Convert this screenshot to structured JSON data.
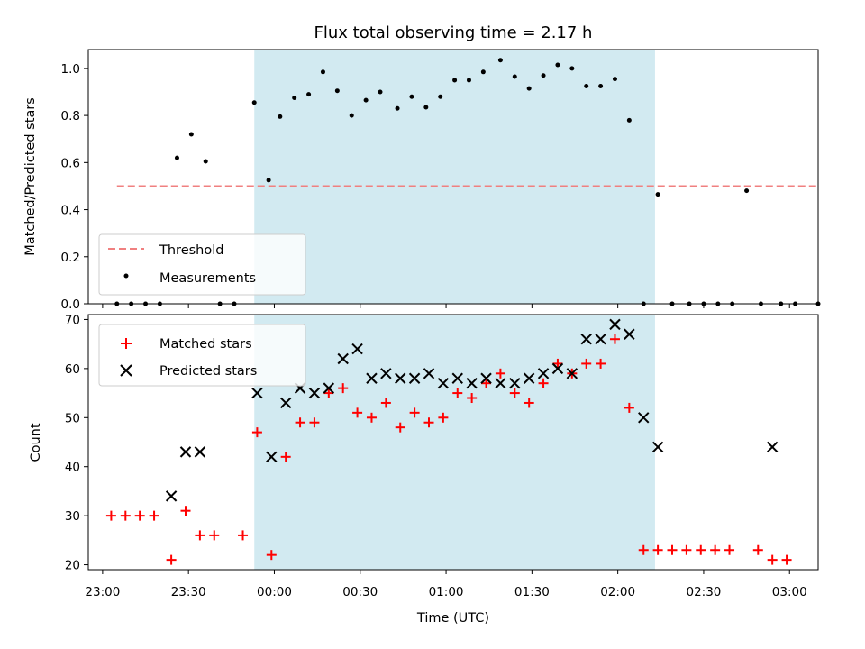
{
  "chart_data": [
    {
      "type": "scatter",
      "title": "Flux total observing time = 2.17 h",
      "ylabel": "Matched/Predicted stars",
      "xlim": [
        -5,
        240
      ],
      "ylim": [
        0,
        1.08
      ],
      "yticks": [
        0.0,
        0.2,
        0.4,
        0.6,
        0.8,
        1.0
      ],
      "ytick_labels": [
        "0.0",
        "0.2",
        "0.4",
        "0.6",
        "0.8",
        "1.0"
      ],
      "grid": false,
      "legend_position": "lower-left",
      "shaded_span_minutes": [
        53,
        193
      ],
      "threshold": {
        "name": "Threshold",
        "y": 0.5,
        "x_range": [
          5,
          250
        ],
        "color": "#f08080",
        "style": "dashed"
      },
      "series": [
        {
          "name": "Measurements",
          "marker": "dot",
          "color": "#000000",
          "x_minutes": [
            5,
            10,
            15,
            20,
            26,
            31,
            36,
            41,
            46,
            53,
            58,
            62,
            67,
            72,
            77,
            82,
            87,
            92,
            97,
            103,
            108,
            113,
            118,
            123,
            128,
            133,
            139,
            144,
            149,
            154,
            159,
            164,
            169,
            174,
            179,
            184,
            189,
            194,
            199,
            205,
            210,
            215,
            220,
            225,
            230,
            237,
            242,
            250
          ],
          "y": [
            0,
            0,
            0,
            0,
            0.62,
            0.72,
            0.605,
            0,
            0,
            0.855,
            0.525,
            0.795,
            0.875,
            0.89,
            0.985,
            0.905,
            0.8,
            0.865,
            0.9,
            0.83,
            0.88,
            0.835,
            0.88,
            0.95,
            0.95,
            0.985,
            1.035,
            0.965,
            0.915,
            0.97,
            1.015,
            1.0,
            0.925,
            0.925,
            0.955,
            0.78,
            0,
            0.465,
            0,
            0,
            0,
            0,
            0,
            0.48,
            0,
            0,
            0,
            0
          ]
        }
      ]
    },
    {
      "type": "scatter",
      "xlabel": "Time (UTC)",
      "ylabel": "Count",
      "xlim": [
        -5,
        250
      ],
      "ylim": [
        19,
        71
      ],
      "xticks_minutes": [
        0,
        30,
        60,
        90,
        120,
        150,
        180,
        210,
        240
      ],
      "xtick_labels": [
        "23:00",
        "23:30",
        "00:00",
        "00:30",
        "01:00",
        "01:30",
        "02:00",
        "02:30",
        "03:00"
      ],
      "yticks": [
        20,
        30,
        40,
        50,
        60,
        70
      ],
      "ytick_labels": [
        "20",
        "30",
        "40",
        "50",
        "60",
        "70"
      ],
      "grid": false,
      "legend_position": "upper-left",
      "shaded_span_minutes": [
        53,
        193
      ],
      "series": [
        {
          "name": "Matched stars",
          "marker": "plus",
          "color": "#ff0000",
          "x_minutes": [
            3,
            8,
            13,
            18,
            24,
            29,
            34,
            39,
            49,
            54,
            59,
            64,
            69,
            74,
            79,
            84,
            89,
            94,
            99,
            104,
            109,
            114,
            119,
            124,
            129,
            134,
            139,
            144,
            149,
            154,
            159,
            164,
            169,
            174,
            179,
            184,
            189,
            194,
            199,
            204,
            209,
            214,
            219,
            229,
            234,
            239
          ],
          "y": [
            30,
            30,
            30,
            30,
            21,
            31,
            26,
            26,
            26,
            47,
            22,
            42,
            49,
            49,
            55,
            56,
            51,
            50,
            53,
            48,
            51,
            49,
            50,
            55,
            54,
            57,
            59,
            55,
            53,
            57,
            61,
            59,
            61,
            61,
            66,
            52,
            23,
            23,
            23,
            23,
            23,
            23,
            23,
            23,
            21,
            21
          ]
        },
        {
          "name": "Predicted stars",
          "marker": "x",
          "color": "#000000",
          "x_minutes": [
            24,
            29,
            34,
            54,
            59,
            64,
            69,
            74,
            79,
            84,
            89,
            94,
            99,
            104,
            109,
            114,
            119,
            124,
            129,
            134,
            139,
            144,
            149,
            154,
            159,
            164,
            169,
            174,
            179,
            184,
            189,
            194,
            234
          ],
          "y": [
            34,
            43,
            43,
            55,
            42,
            53,
            56,
            55,
            56,
            62,
            64,
            58,
            59,
            58,
            58,
            59,
            57,
            58,
            57,
            58,
            57,
            57,
            58,
            59,
            60,
            59,
            66,
            66,
            69,
            67,
            50,
            44,
            44
          ]
        }
      ]
    }
  ]
}
